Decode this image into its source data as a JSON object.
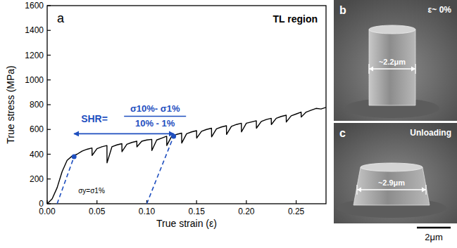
{
  "chart_data": {
    "type": "line",
    "panel_label": "a",
    "title": "TL region",
    "x_label": "True strain (ε)",
    "y_label": "True stress (MPa)",
    "xlim": [
      0,
      0.28
    ],
    "ylim": [
      0,
      1600
    ],
    "xticks": [
      {
        "value": 0,
        "label": "0.00"
      },
      {
        "value": 0.05,
        "label": "0.05"
      },
      {
        "value": 0.1,
        "label": "0.10"
      },
      {
        "value": 0.15,
        "label": "0.15"
      },
      {
        "value": 0.2,
        "label": "0.20"
      },
      {
        "value": 0.25,
        "label": "0.25"
      }
    ],
    "yticks": [
      0,
      200,
      400,
      600,
      800,
      1000,
      1200,
      1400,
      1600
    ],
    "grid": false,
    "x": [
      0,
      0.005,
      0.01,
      0.015,
      0.02,
      0.025,
      0.03,
      0.035,
      0.04,
      0.045,
      0.0451,
      0.05,
      0.055,
      0.06,
      0.0601,
      0.065,
      0.07,
      0.075,
      0.0751,
      0.08,
      0.085,
      0.09,
      0.0901,
      0.095,
      0.1,
      0.105,
      0.1051,
      0.11,
      0.115,
      0.12,
      0.1201,
      0.125,
      0.13,
      0.135,
      0.1351,
      0.14,
      0.145,
      0.15,
      0.1501,
      0.155,
      0.16,
      0.165,
      0.1651,
      0.17,
      0.175,
      0.18,
      0.1801,
      0.185,
      0.19,
      0.195,
      0.1951,
      0.2,
      0.205,
      0.21,
      0.2101,
      0.215,
      0.22,
      0.225,
      0.2251,
      0.23,
      0.235,
      0.24,
      0.2401,
      0.245,
      0.25,
      0.255,
      0.2551,
      0.26,
      0.265,
      0.27,
      0.275,
      0.28
    ],
    "series": [
      {
        "color": "#000000",
        "line_style": "solid",
        "values": [
          0,
          40,
          130,
          260,
          350,
          385,
          400,
          425,
          440,
          450,
          390,
          445,
          460,
          470,
          330,
          460,
          475,
          485,
          420,
          480,
          495,
          505,
          460,
          505,
          515,
          520,
          430,
          515,
          530,
          545,
          470,
          545,
          560,
          570,
          490,
          565,
          580,
          590,
          530,
          585,
          600,
          610,
          540,
          605,
          620,
          630,
          560,
          625,
          640,
          650,
          580,
          650,
          660,
          670,
          610,
          665,
          680,
          690,
          640,
          690,
          705,
          715,
          660,
          710,
          725,
          740,
          700,
          740,
          755,
          770,
          765,
          778
        ]
      }
    ],
    "annotations": [
      {
        "type": "line",
        "line_style": "dashed",
        "color": "#1f4fbf",
        "x": [
          0.01,
          0.027
        ],
        "y": [
          0,
          380
        ]
      },
      {
        "type": "line",
        "line_style": "dashed",
        "color": "#1f4fbf",
        "x": [
          0.1,
          0.127
        ],
        "y": [
          0,
          545
        ]
      },
      {
        "type": "scatter",
        "marker": "circle",
        "color": "#1f4fbf",
        "x": [
          0.027,
          0.127
        ],
        "y": [
          380,
          545
        ]
      },
      {
        "type": "arrow",
        "color": "#1f4fbf",
        "x": [
          0.027,
          0.127
        ],
        "y": [
          565,
          565
        ]
      }
    ],
    "formula": {
      "lhs": "SHR=",
      "numerator": "σ10%- σ1%",
      "denominator": "10% - 1%"
    },
    "yield_label": "σy=σ1%"
  },
  "images": [
    {
      "label": "b",
      "caption": "ε~ 0%",
      "width_label": "~2.2μm"
    },
    {
      "label": "c",
      "caption": "Unloading",
      "width_label": "~2.9μm"
    }
  ],
  "scale_bar": "2μm"
}
